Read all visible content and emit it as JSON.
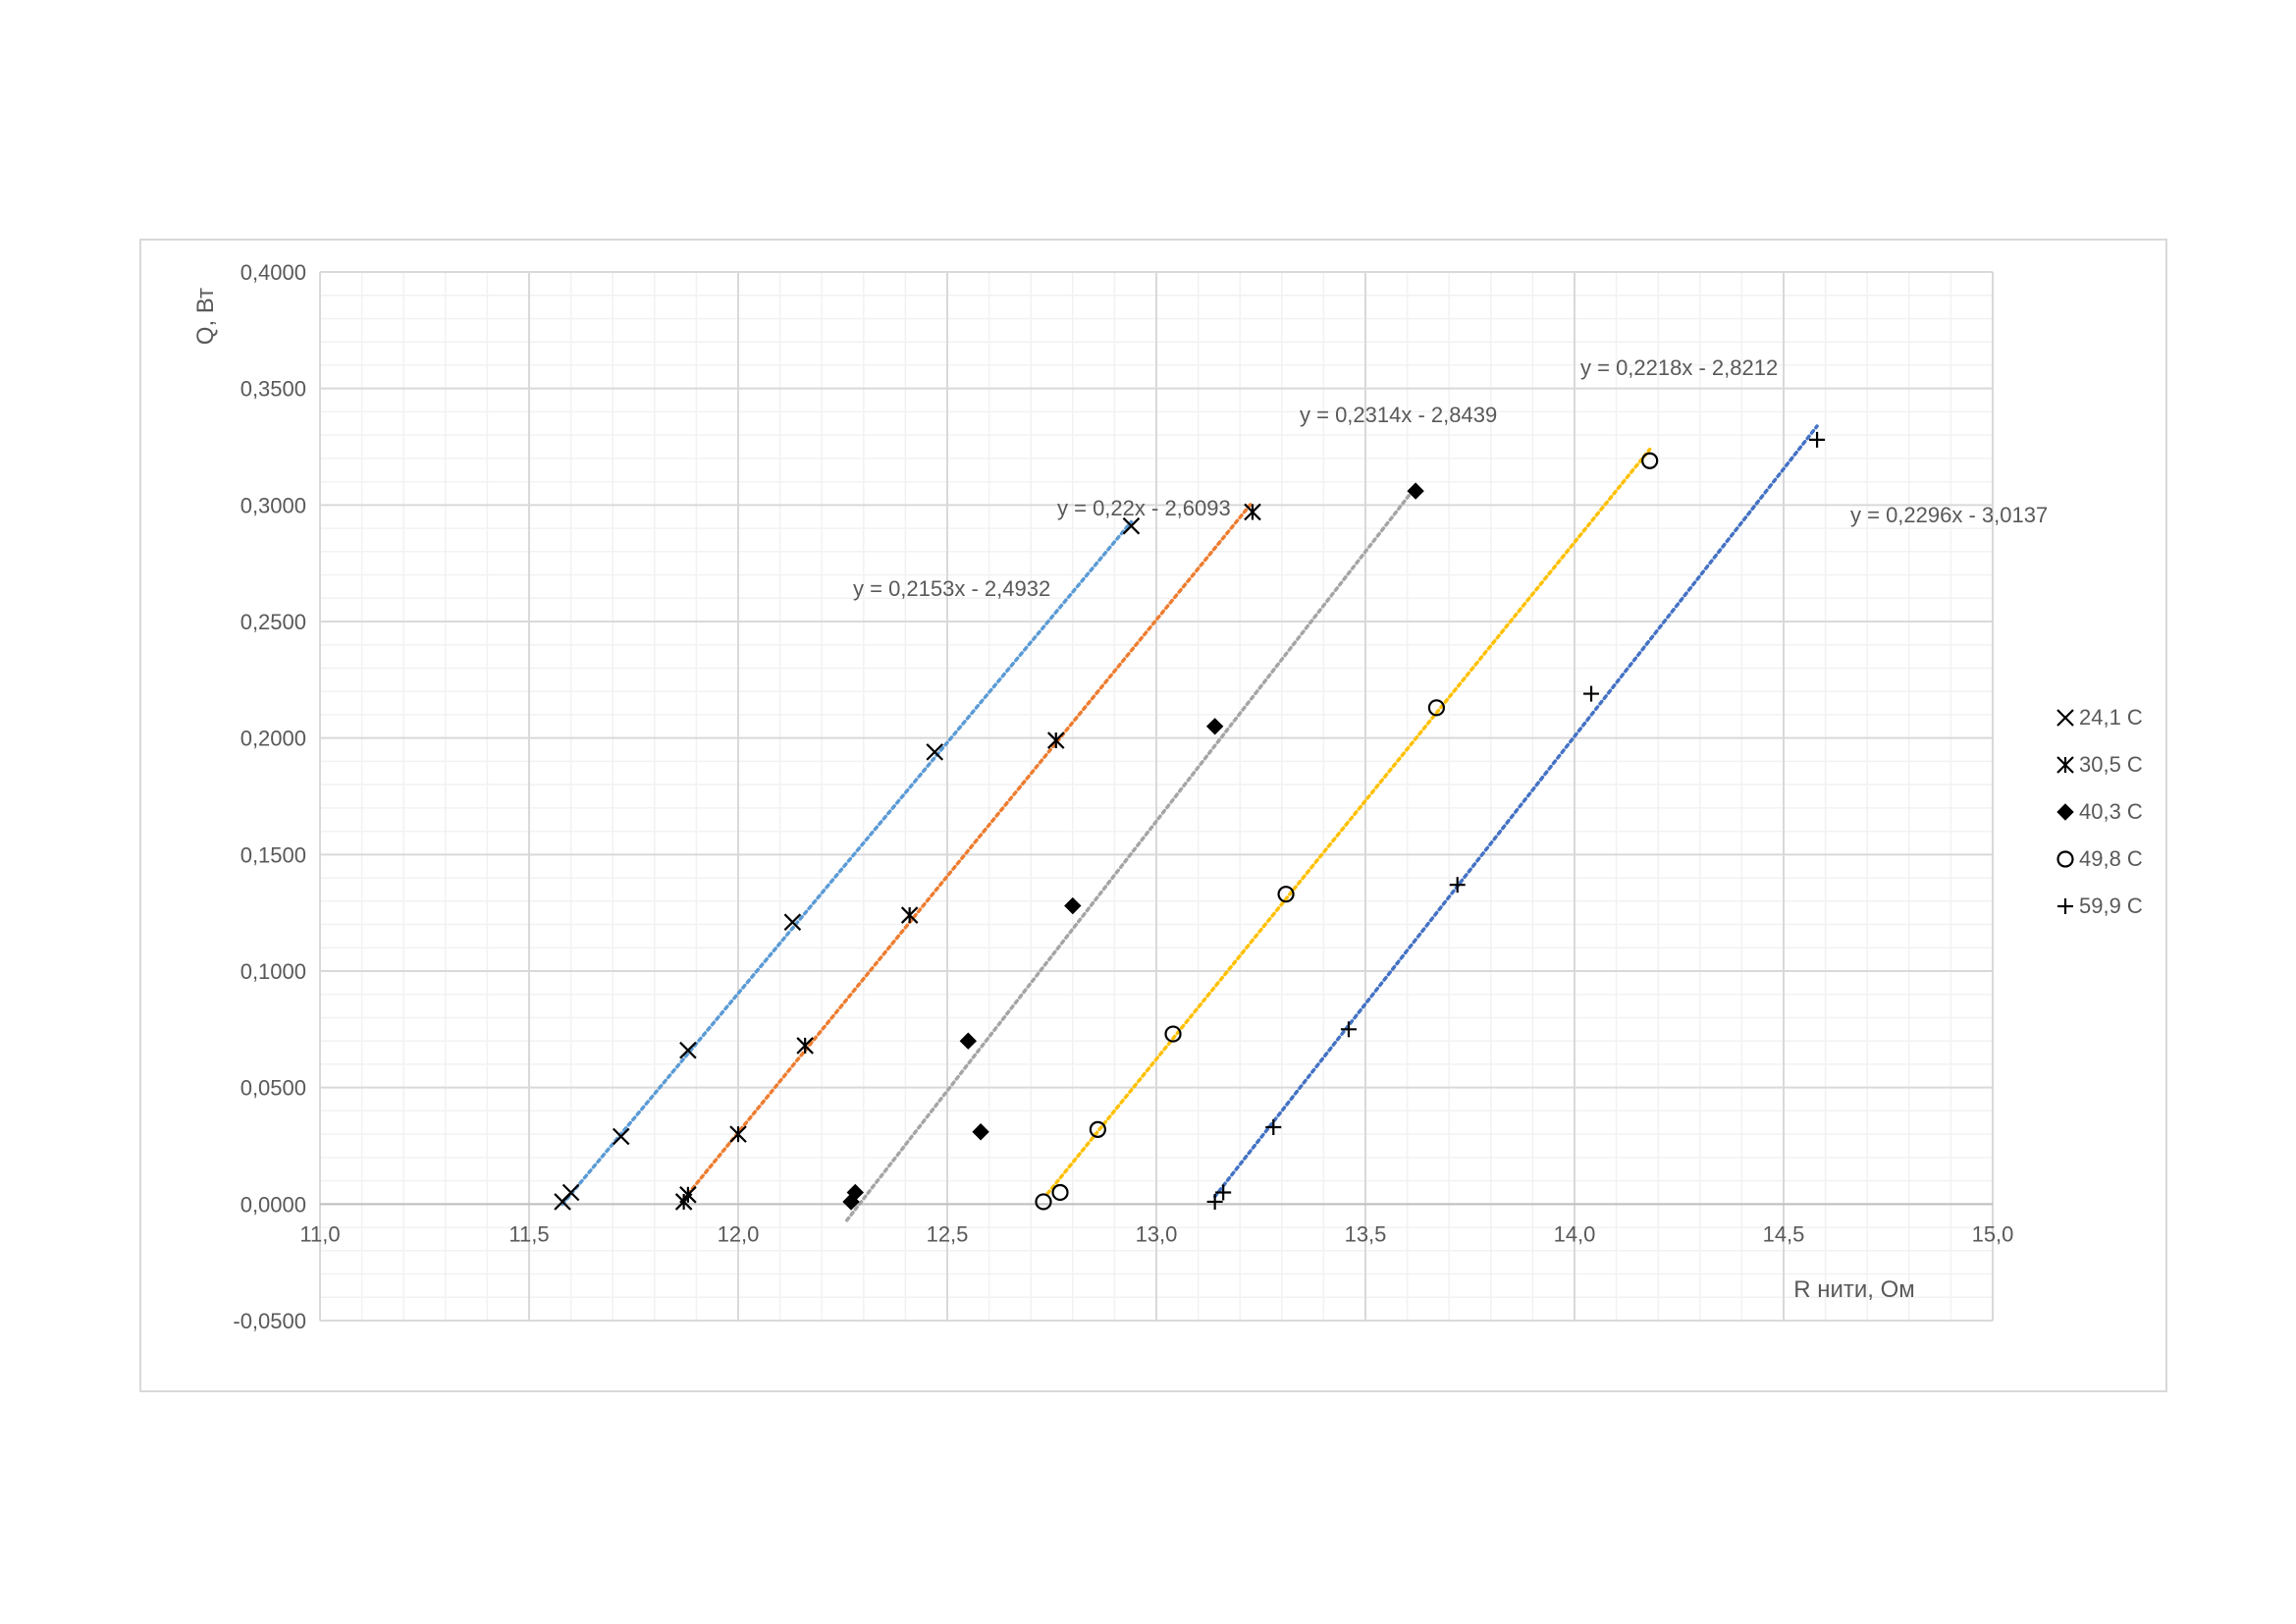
{
  "chart_data": {
    "type": "scatter",
    "title": "",
    "xlabel": "R нити, Ом",
    "ylabel": "Q, Вт",
    "xlim": [
      11.0,
      15.0
    ],
    "ylim": [
      -0.05,
      0.4
    ],
    "x_major_step": 0.5,
    "x_minor_step": 0.1,
    "y_major_step": 0.05,
    "y_minor_step": 0.01,
    "x_ticks": [
      "11,0",
      "11,5",
      "12,0",
      "12,5",
      "13,0",
      "13,5",
      "14,0",
      "14,5",
      "15,0"
    ],
    "y_ticks": [
      "-0,0500",
      "0,0000",
      "0,0500",
      "0,1000",
      "0,1500",
      "0,2000",
      "0,2500",
      "0,3000",
      "0,3500",
      "0,4000"
    ],
    "grid": true,
    "legend_position": "right",
    "series": [
      {
        "name": "24,1 C",
        "marker": "x",
        "trend_color": "#5b9bd5",
        "trend": {
          "slope": 0.2153,
          "intercept": -2.4932,
          "x_range": [
            11.58,
            12.94
          ]
        },
        "equation": "y = 0,2153x - 2,4932",
        "points": [
          [
            11.58,
            0.001
          ],
          [
            11.6,
            0.005
          ],
          [
            11.72,
            0.029
          ],
          [
            11.88,
            0.066
          ],
          [
            12.13,
            0.121
          ],
          [
            12.47,
            0.194
          ],
          [
            12.94,
            0.291
          ]
        ]
      },
      {
        "name": "30,5 C",
        "marker": "asterisk",
        "trend_color": "#ed7d31",
        "trend": {
          "slope": 0.22,
          "intercept": -2.6093,
          "x_range": [
            11.87,
            13.23
          ]
        },
        "equation": "y = 0,22x - 2,6093",
        "points": [
          [
            11.87,
            0.001
          ],
          [
            11.88,
            0.004
          ],
          [
            12.0,
            0.03
          ],
          [
            12.16,
            0.068
          ],
          [
            12.41,
            0.124
          ],
          [
            12.76,
            0.199
          ],
          [
            13.23,
            0.297
          ]
        ]
      },
      {
        "name": "40,3 C",
        "marker": "diamond",
        "trend_color": "#a5a5a5",
        "trend": {
          "slope": 0.2314,
          "intercept": -2.8439,
          "x_range": [
            12.26,
            13.62
          ]
        },
        "equation": "y = 0,2314x - 2,8439",
        "points": [
          [
            12.27,
            0.001
          ],
          [
            12.28,
            0.005
          ],
          [
            12.58,
            0.031
          ],
          [
            12.55,
            0.07
          ],
          [
            12.8,
            0.128
          ],
          [
            13.14,
            0.205
          ],
          [
            13.62,
            0.306
          ]
        ]
      },
      {
        "name": "49,8 C",
        "marker": "circle",
        "trend_color": "#ffc000",
        "trend": {
          "slope": 0.2218,
          "intercept": -2.8212,
          "x_range": [
            12.74,
            14.18
          ]
        },
        "equation": "y = 0,2218x - 2,8212",
        "points": [
          [
            12.73,
            0.001
          ],
          [
            12.77,
            0.005
          ],
          [
            12.86,
            0.032
          ],
          [
            13.04,
            0.073
          ],
          [
            13.31,
            0.133
          ],
          [
            13.67,
            0.213
          ],
          [
            14.18,
            0.319
          ]
        ]
      },
      {
        "name": "59,9 C",
        "marker": "plus",
        "trend_color": "#4472c4",
        "trend": {
          "slope": 0.2296,
          "intercept": -3.0137,
          "x_range": [
            13.14,
            14.58
          ]
        },
        "equation": "y = 0,2296x - 3,0137",
        "points": [
          [
            13.14,
            0.001
          ],
          [
            13.16,
            0.005
          ],
          [
            13.28,
            0.033
          ],
          [
            13.46,
            0.075
          ],
          [
            13.72,
            0.137
          ],
          [
            14.04,
            0.219
          ],
          [
            14.58,
            0.328
          ]
        ]
      }
    ]
  }
}
